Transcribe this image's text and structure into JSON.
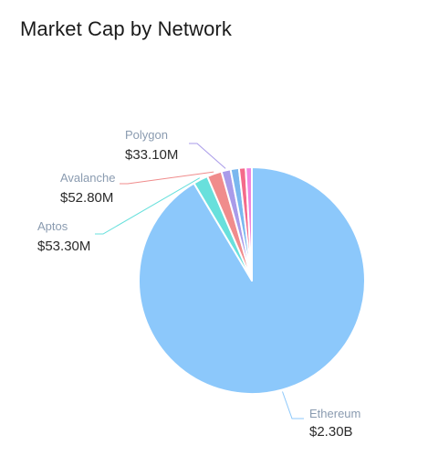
{
  "title": "Market Cap by Network",
  "chart_data": {
    "type": "pie",
    "title": "Market Cap by Network",
    "slices": [
      {
        "name": "Ethereum",
        "value": 2300.0,
        "value_label": "$2.30B",
        "color": "#8cc8fb",
        "labelled": true
      },
      {
        "name": "Aptos",
        "value": 53.3,
        "value_label": "$53.30M",
        "color": "#68e0dc",
        "labelled": true
      },
      {
        "name": "Avalanche",
        "value": 52.8,
        "value_label": "$52.80M",
        "color": "#f08c8c",
        "labelled": true
      },
      {
        "name": "Polygon",
        "value": 33.1,
        "value_label": "$33.10M",
        "color": "#a99be9",
        "labelled": true
      },
      {
        "name": "",
        "value": 30,
        "value_label": "",
        "color": "#7ab8ef",
        "labelled": false
      },
      {
        "name": "",
        "value": 24,
        "value_label": "",
        "color": "#f46a8a",
        "labelled": false
      },
      {
        "name": "",
        "value": 22,
        "value_label": "",
        "color": "#ef85df",
        "labelled": false
      }
    ]
  }
}
